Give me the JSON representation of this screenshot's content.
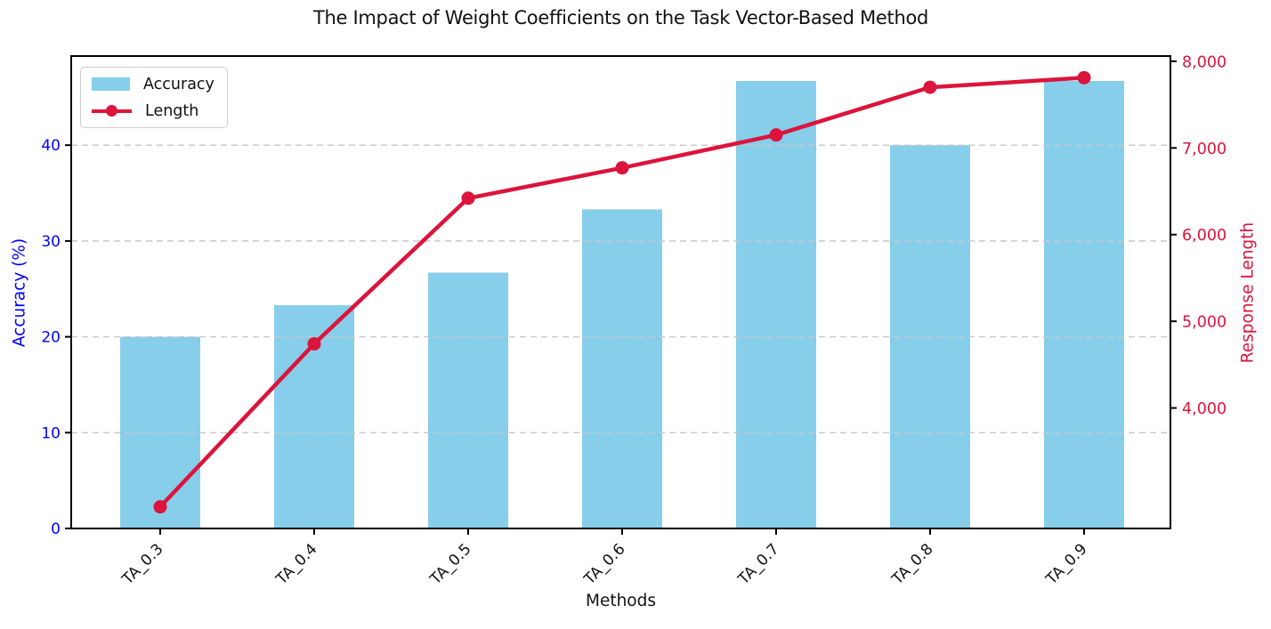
{
  "chart_data": {
    "type": "bar+line",
    "title": "The Impact of Weight Coefficients on the Task Vector-Based Method",
    "xlabel": "Methods",
    "ylabel_left": "Accuracy (%)",
    "ylabel_right": "Response Length",
    "categories": [
      "TA_0.3",
      "TA_0.4",
      "TA_0.5",
      "TA_0.6",
      "TA_0.7",
      "TA_0.8",
      "TA_0.9"
    ],
    "series": [
      {
        "name": "Accuracy",
        "type": "bar",
        "axis": "left",
        "color": "#87CEEB",
        "values": [
          20.0,
          23.3,
          26.7,
          33.3,
          46.7,
          40.0,
          46.7
        ]
      },
      {
        "name": "Length",
        "type": "line",
        "axis": "right",
        "color": "#DC143C",
        "marker": "circle",
        "values": [
          2860,
          4740,
          6420,
          6770,
          7150,
          7700,
          7810
        ]
      }
    ],
    "yticks_left": [
      0,
      10,
      20,
      30,
      40
    ],
    "yticks_right": [
      4000,
      5000,
      6000,
      7000,
      8000
    ],
    "yticks_right_labels": [
      "4,000",
      "5,000",
      "6,000",
      "7,000",
      "8,000"
    ],
    "ylim_left": [
      0,
      49.3
    ],
    "ylim_right": [
      2610,
      8060
    ],
    "axis_color_left": "#0000ff",
    "axis_color_right": "#DC143C",
    "grid": {
      "axis": "y",
      "linestyle": "dashed",
      "color": "#c8c8c8"
    },
    "legend_position": "upper left",
    "xtick_rotation_deg": 45
  },
  "legend": {
    "items": [
      {
        "label": "Accuracy",
        "swatch": "patch",
        "color": "#87CEEB"
      },
      {
        "label": "Length",
        "swatch": "line-marker",
        "color": "#DC143C"
      }
    ]
  }
}
